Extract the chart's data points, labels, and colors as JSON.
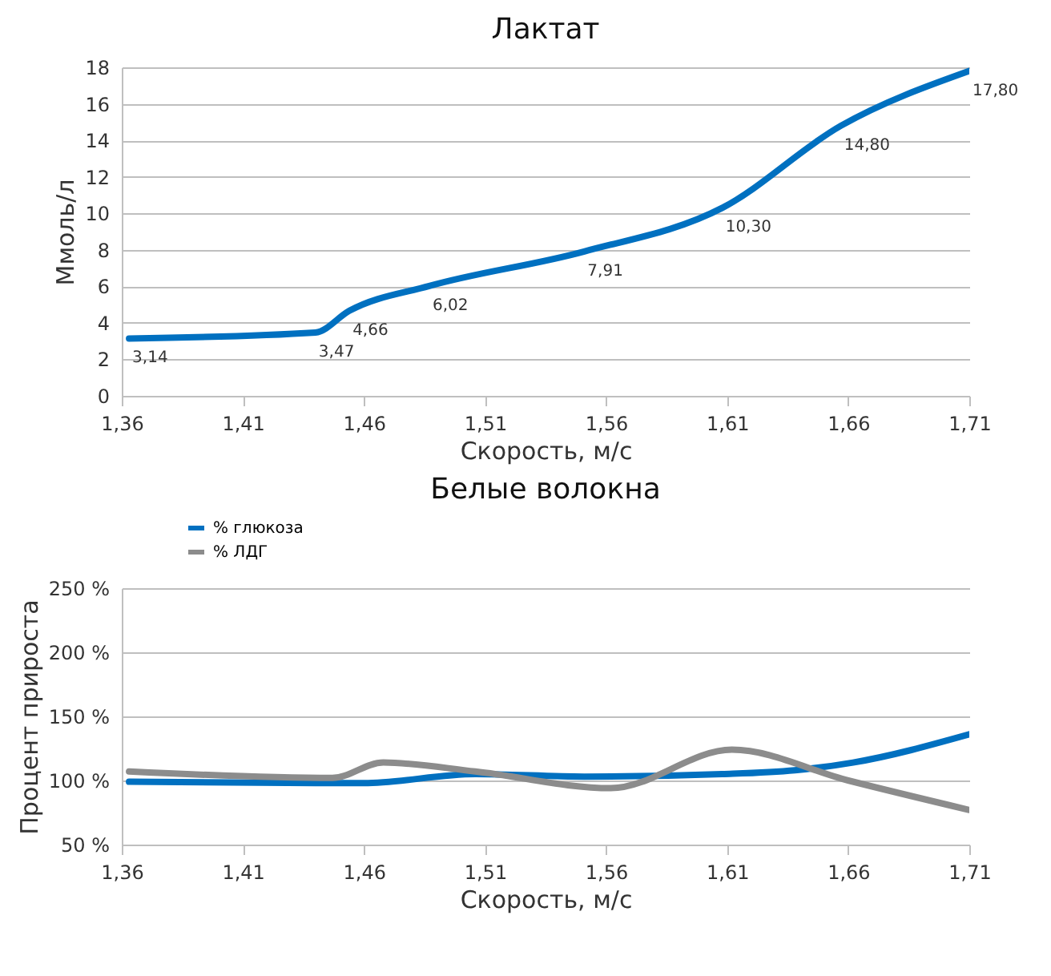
{
  "chart_data": [
    {
      "type": "line",
      "title": "Лактат",
      "xlabel": "Скорость, м/с",
      "ylabel": "Ммоль/л",
      "xlim": [
        1.36,
        1.71
      ],
      "xticks": [
        {
          "value": 1.36,
          "label": "1,36"
        },
        {
          "value": 1.41,
          "label": "1,41"
        },
        {
          "value": 1.46,
          "label": "1,46"
        },
        {
          "value": 1.51,
          "label": "1,51"
        },
        {
          "value": 1.56,
          "label": "1,56"
        },
        {
          "value": 1.61,
          "label": "1,61"
        },
        {
          "value": 1.66,
          "label": "1,66"
        },
        {
          "value": 1.71,
          "label": "1,71"
        }
      ],
      "ylim": [
        0,
        18
      ],
      "yticks": [
        0,
        2,
        4,
        6,
        8,
        10,
        12,
        14,
        16,
        18
      ],
      "grid": "y",
      "marker": "none",
      "line_style": "solid",
      "series": [
        {
          "color": "#0070c0",
          "x": [
            1.363,
            1.44,
            1.454,
            1.487,
            1.551,
            1.608,
            1.657,
            1.71
          ],
          "values": [
            3.14,
            3.47,
            4.66,
            6.02,
            7.91,
            10.3,
            14.8,
            17.8
          ],
          "value_labels": [
            "3,14",
            "3,47",
            "4,66",
            "6,02",
            "7,91",
            "10,30",
            "14,80",
            "17,80"
          ]
        }
      ]
    },
    {
      "type": "line",
      "title": "Белые волокна",
      "xlabel": "Скорость, м/с",
      "ylabel": "Процент прироста",
      "xlim": [
        1.36,
        1.71
      ],
      "xticks": [
        {
          "value": 1.36,
          "label": "1,36"
        },
        {
          "value": 1.41,
          "label": "1,41"
        },
        {
          "value": 1.46,
          "label": "1,46"
        },
        {
          "value": 1.51,
          "label": "1,51"
        },
        {
          "value": 1.56,
          "label": "1,56"
        },
        {
          "value": 1.61,
          "label": "1,61"
        },
        {
          "value": 1.66,
          "label": "1,66"
        },
        {
          "value": 1.71,
          "label": "1,71"
        }
      ],
      "ylim": [
        50,
        250
      ],
      "yticks": [
        {
          "value": 50,
          "label": "50 %"
        },
        {
          "value": 100,
          "label": "100 %"
        },
        {
          "value": 150,
          "label": "150 %"
        },
        {
          "value": 200,
          "label": "200 %"
        },
        {
          "value": 250,
          "label": "250 %"
        }
      ],
      "grid": "y",
      "legend": "top left",
      "marker": "none",
      "line_style": "solid",
      "series": [
        {
          "name": "% глюкоза",
          "color": "#0070c0",
          "x": [
            1.363,
            1.44,
            1.46,
            1.506,
            1.551,
            1.608,
            1.638,
            1.662,
            1.71
          ],
          "values": [
            99,
            98,
            98,
            105,
            103,
            105,
            108,
            114,
            136
          ]
        },
        {
          "name": "% ЛДГ",
          "color": "#8c8c8c",
          "x": [
            1.363,
            1.447,
            1.468,
            1.506,
            1.562,
            1.612,
            1.66,
            1.71
          ],
          "values": [
            107,
            102,
            114,
            107,
            94,
            124,
            100,
            77
          ]
        }
      ]
    }
  ]
}
